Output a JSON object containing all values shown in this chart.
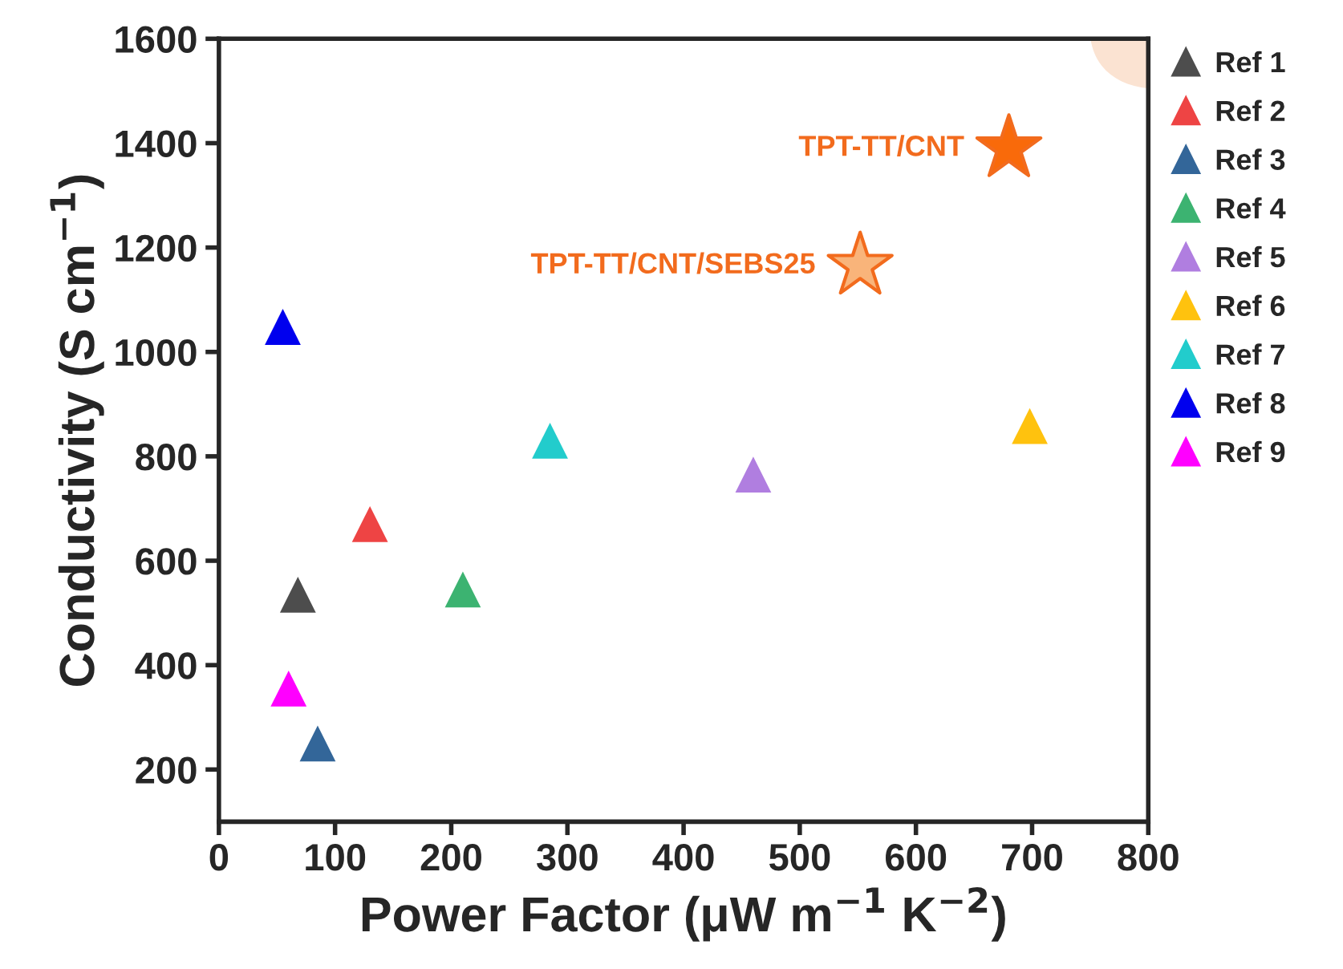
{
  "chart_data": {
    "type": "scatter",
    "xlabel": "Power Factor (μW m$^{−1}$ K$^{−2}$)",
    "ylabel": "Conductivity (S cm$^{−1}$)",
    "xlim": [
      0,
      800
    ],
    "xticks": [
      0,
      100,
      200,
      300,
      400,
      500,
      600,
      700,
      800
    ],
    "ylim": [
      100,
      1600
    ],
    "yticks": [
      200,
      400,
      600,
      800,
      1000,
      1200,
      1400,
      1600
    ],
    "grid": false,
    "legend": "right",
    "marker": "triangle",
    "series": [
      {
        "name": "Ref 1",
        "color": "#4d4d4d",
        "x": [
          68
        ],
        "values": [
          535
        ]
      },
      {
        "name": "Ref 2",
        "color": "#ee4444",
        "x": [
          130
        ],
        "values": [
          670
        ]
      },
      {
        "name": "Ref 3",
        "color": "#336699",
        "x": [
          85
        ],
        "values": [
          250
        ]
      },
      {
        "name": "Ref 4",
        "color": "#3cb371",
        "x": [
          210
        ],
        "values": [
          545
        ]
      },
      {
        "name": "Ref 5",
        "color": "#b07ee0",
        "x": [
          460
        ],
        "values": [
          765
        ]
      },
      {
        "name": "Ref 6",
        "color": "#ffc20e",
        "x": [
          698
        ],
        "values": [
          858
        ]
      },
      {
        "name": "Ref 7",
        "color": "#22cccc",
        "x": [
          285
        ],
        "values": [
          830
        ]
      },
      {
        "name": "Ref 8",
        "color": "#0000ee",
        "x": [
          55
        ],
        "values": [
          1048
        ]
      },
      {
        "name": "Ref 9",
        "color": "#ff00ff",
        "x": [
          60
        ],
        "values": [
          355
        ]
      },
      {
        "name": "TPT-TT/CNT",
        "color": "#f96a0a",
        "marker": "star",
        "x": [
          680
        ],
        "values": [
          1390
        ]
      },
      {
        "name": "TPT-TT/CNT/SEBS25",
        "color": "#f9b47a",
        "marker": "star",
        "x": [
          552
        ],
        "values": [
          1165
        ]
      }
    ]
  }
}
